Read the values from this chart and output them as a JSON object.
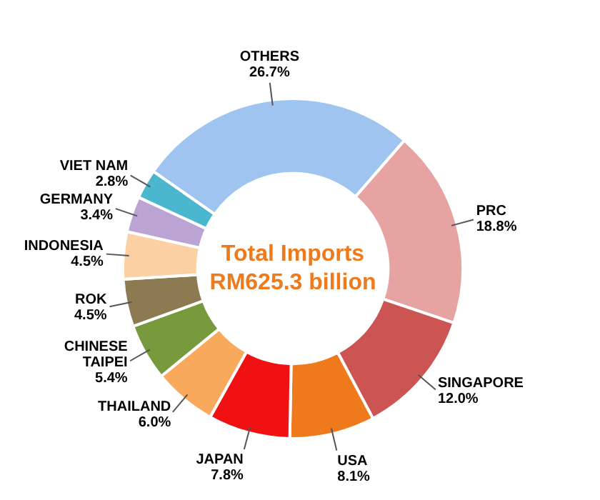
{
  "chart_data": {
    "type": "donut",
    "title": "Total Imports RM625.3 billion",
    "categories": [
      "PRC",
      "SINGAPORE",
      "USA",
      "JAPAN",
      "THAILAND",
      "CHINESE TAIPEI",
      "ROK",
      "INDONESIA",
      "GERMANY",
      "VIET NAM",
      "OTHERS"
    ],
    "values": [
      18.8,
      12.0,
      8.1,
      7.8,
      6.0,
      5.4,
      4.5,
      4.5,
      3.4,
      2.8,
      26.7
    ],
    "colors": [
      "#e6a3a1",
      "#cc5553",
      "#ee7a1c",
      "#f01212",
      "#f8a95c",
      "#789a3c",
      "#8c7b52",
      "#fbd1a3",
      "#bba3d3",
      "#4ab7cf",
      "#a0c4f0"
    ],
    "value_labels": [
      "18.8%",
      "12.0%",
      "8.1%",
      "7.8%",
      "6.0%",
      "5.4%",
      "4.5%",
      "4.5%",
      "3.4%",
      "2.8%",
      "26.7%"
    ],
    "legend": false
  }
}
